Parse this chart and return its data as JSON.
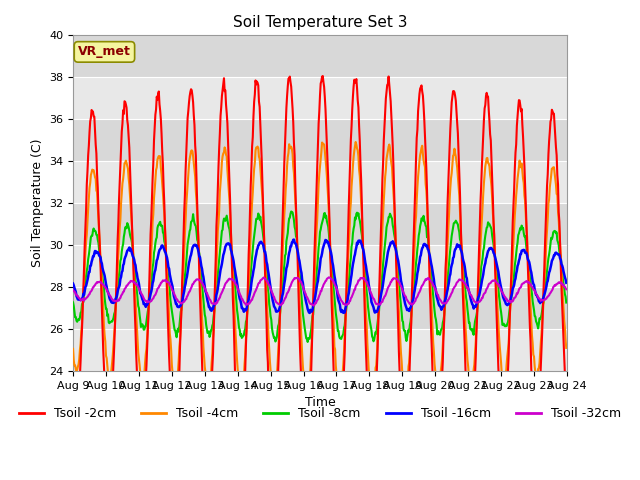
{
  "title": "Soil Temperature Set 3",
  "xlabel": "Time",
  "ylabel": "Soil Temperature (C)",
  "ylim": [
    24,
    40
  ],
  "ytick_vals": [
    24,
    26,
    28,
    30,
    32,
    34,
    36,
    38,
    40
  ],
  "xtick_labels": [
    "Aug 9",
    "Aug 10",
    "Aug 11",
    "Aug 12",
    "Aug 13",
    "Aug 14",
    "Aug 15",
    "Aug 16",
    "Aug 17",
    "Aug 18",
    "Aug 19",
    "Aug 20",
    "Aug 21",
    "Aug 22",
    "Aug 23",
    "Aug 24"
  ],
  "legend_labels": [
    "Tsoil -2cm",
    "Tsoil -4cm",
    "Tsoil -8cm",
    "Tsoil -16cm",
    "Tsoil -32cm"
  ],
  "line_colors": [
    "#ff0000",
    "#ff8800",
    "#00cc00",
    "#0000ff",
    "#cc00cc"
  ],
  "line_widths": [
    1.5,
    1.5,
    1.5,
    1.8,
    1.5
  ],
  "background_color": "#ffffff",
  "plot_bg_color": "#d8d8d8",
  "grid_stripe_light": "#e8e8e8",
  "annotation_text": "VR_met",
  "title_fontsize": 11,
  "axis_fontsize": 9,
  "tick_fontsize": 8
}
